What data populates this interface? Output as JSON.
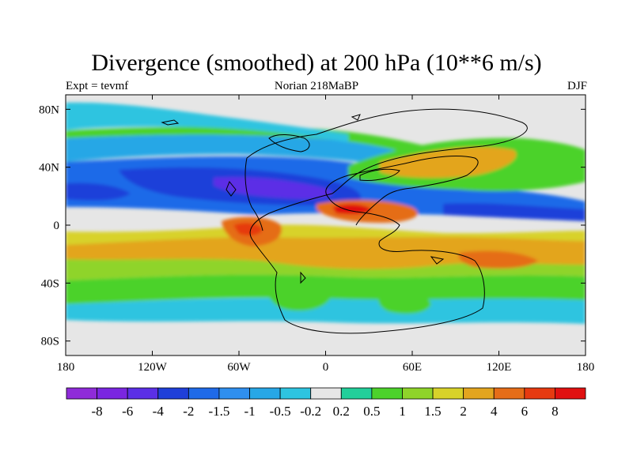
{
  "title": "Divergence (smoothed) at 200 hPa (10**6 m/s)",
  "left_string": "Expt = tevmf",
  "center_string": "Norian 218MaBP",
  "right_string": "DJF",
  "map": {
    "lon_range": [
      -180,
      180
    ],
    "lat_range": [
      -90,
      90
    ],
    "x_ticks": [
      {
        "value": -180,
        "label": "180"
      },
      {
        "value": -120,
        "label": "120W"
      },
      {
        "value": -60,
        "label": "60W"
      },
      {
        "value": 0,
        "label": "0"
      },
      {
        "value": 60,
        "label": "60E"
      },
      {
        "value": 120,
        "label": "120E"
      },
      {
        "value": 180,
        "label": "180"
      }
    ],
    "y_ticks": [
      {
        "value": 80,
        "label": "80N"
      },
      {
        "value": 40,
        "label": "40N"
      },
      {
        "value": 0,
        "label": "0"
      },
      {
        "value": -40,
        "label": "40S"
      },
      {
        "value": -80,
        "label": "80S"
      }
    ],
    "missing_color": "#e6e6e6"
  },
  "colorbar": {
    "labels": [
      "-8",
      "-6",
      "-4",
      "-2",
      "-1.5",
      "-1",
      "-0.5",
      "-0.2",
      "0.2",
      "0.5",
      "1",
      "1.5",
      "2",
      "4",
      "6",
      "8"
    ],
    "colors": [
      "#8f2bd9",
      "#7a26e0",
      "#5b2fe6",
      "#1f3fd9",
      "#1f6ae8",
      "#2f8fef",
      "#27a7e6",
      "#2ec4e0",
      "#e6e6e6",
      "#22cf9a",
      "#4cd22b",
      "#8fd42a",
      "#d8d22a",
      "#e3a51f",
      "#e56d18",
      "#e63a10",
      "#e01010"
    ]
  }
}
